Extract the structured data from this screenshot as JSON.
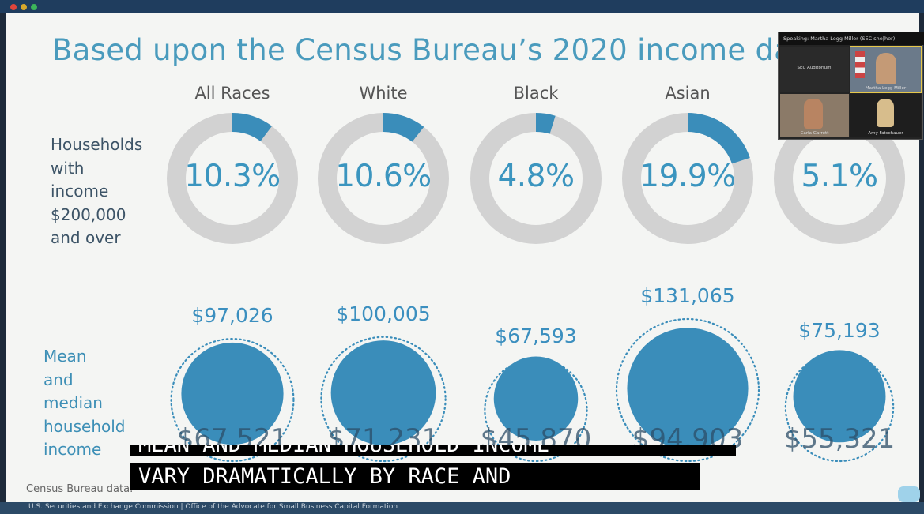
{
  "window": {
    "dot_colors": [
      "#e0453b",
      "#d7a72c",
      "#3cb55a"
    ]
  },
  "slide": {
    "title": "Based upon the Census Bureau’s 2020 income da",
    "row1_label": "Households\nwith\nincome\n$200,000\nand over",
    "row2_label": "Mean\nand\nmedian\nhousehold\nincome",
    "source": "Census Bureau data.",
    "footer": "U.S. Securities and Exchange Commission  |  Office of the Advocate for Small Business Capital Formation"
  },
  "chart_data": [
    {
      "type": "donut",
      "title": "Households with income $200,000 and over",
      "categories": [
        "All Races",
        "White",
        "Black",
        "Asian",
        ""
      ],
      "values": [
        10.3,
        10.6,
        4.8,
        19.9,
        5.1
      ],
      "labels": [
        "10.3%",
        "10.6%",
        "4.8%",
        "19.9%",
        "5.1%"
      ],
      "unit": "%"
    },
    {
      "type": "bubble",
      "title": "Mean and median household income",
      "categories": [
        "All Races",
        "White",
        "Black",
        "Asian",
        ""
      ],
      "series": [
        {
          "name": "Mean",
          "values": [
            97026,
            100005,
            67593,
            131065,
            75193
          ],
          "labels": [
            "$97,026",
            "$100,005",
            "$67,593",
            "$131,065",
            "$75,193"
          ]
        },
        {
          "name": "Median",
          "values": [
            67521,
            71231,
            45870,
            94903,
            55321
          ],
          "labels": [
            "$67,521",
            "$71,231",
            "$45,870",
            "$94,903",
            "$55,321"
          ]
        }
      ]
    }
  ],
  "colors": {
    "accent": "#3a8dba",
    "ring": "#d2d2d2",
    "title": "#4a9bbd"
  },
  "captions": {
    "line1": "MEAN AND MEDIAN HOUSEHOLD INCOME",
    "line2": "VARY DRAMATICALLY BY RACE AND"
  },
  "meeting": {
    "speaking": "Speaking: Martha Legg Miller (SEC she|her)",
    "participants": [
      "SEC Auditorium",
      "Martha Legg Miller",
      "Carla Garrett",
      "Amy Fatschauer"
    ]
  }
}
